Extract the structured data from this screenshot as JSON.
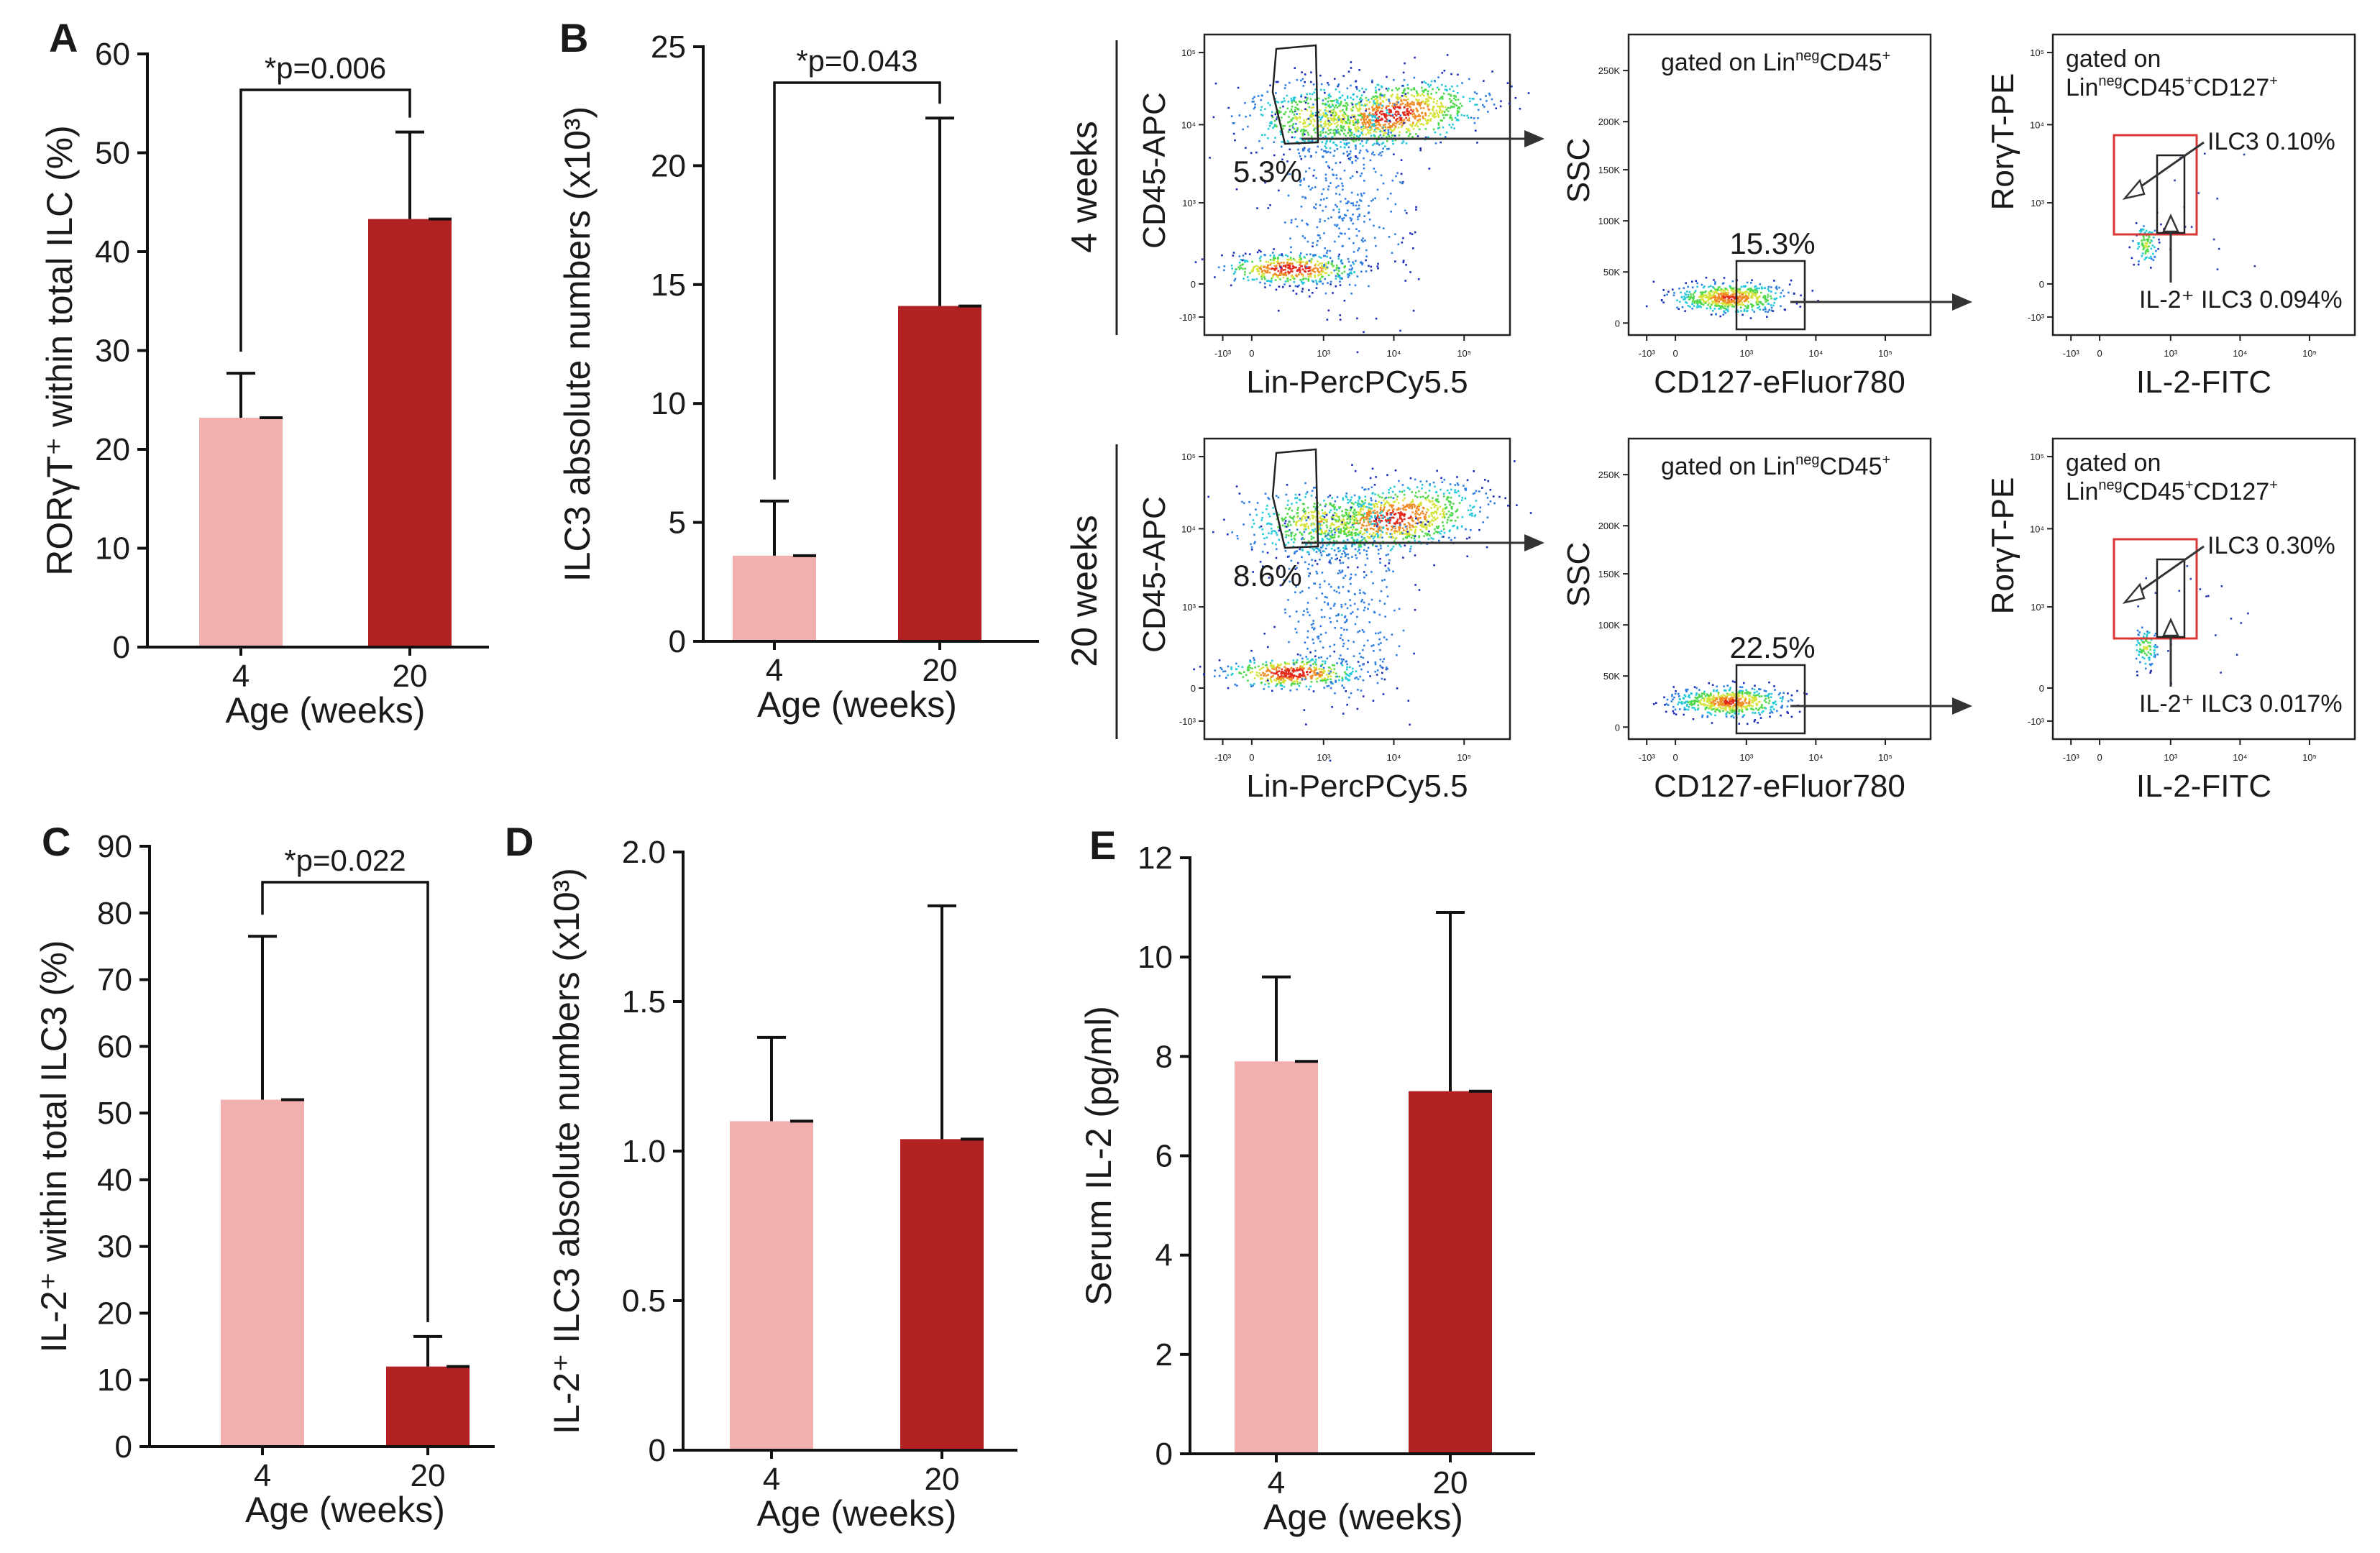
{
  "colors": {
    "young": "#f2afaf",
    "old": "#b22222",
    "gate_red": "#d93636"
  },
  "chart_data": [
    {
      "id": "A",
      "type": "bar",
      "panel_label": "A",
      "categories": [
        "4",
        "20"
      ],
      "values": [
        23.2,
        43.3
      ],
      "errors": [
        4.5,
        8.8
      ],
      "ylabel": "RORγT⁺ within total ILC (%)",
      "xlabel": "Age (weeks)",
      "ylim": [
        0,
        60
      ],
      "yticks": [
        "0",
        "10",
        "20",
        "30",
        "40",
        "50",
        "60"
      ],
      "significance": "*p=0.006"
    },
    {
      "id": "B",
      "type": "bar",
      "panel_label": "B",
      "categories": [
        "4",
        "20"
      ],
      "values": [
        3.6,
        14.1
      ],
      "errors": [
        2.3,
        7.9
      ],
      "ylabel": "ILC3 absolute numbers (x10³)",
      "xlabel": "Age (weeks)",
      "ylim": [
        0,
        25
      ],
      "yticks": [
        "0",
        "5",
        "10",
        "15",
        "20",
        "25"
      ],
      "significance": "*p=0.043"
    },
    {
      "id": "C",
      "type": "bar",
      "panel_label": "C",
      "categories": [
        "4",
        "20"
      ],
      "values": [
        52,
        12
      ],
      "errors": [
        24.5,
        4.5
      ],
      "ylabel": "IL-2⁺ within total ILC3 (%)",
      "xlabel": "Age (weeks)",
      "ylim": [
        0,
        90
      ],
      "yticks": [
        "0",
        "10",
        "20",
        "30",
        "40",
        "50",
        "60",
        "70",
        "80",
        "90"
      ],
      "significance": "*p=0.022"
    },
    {
      "id": "D",
      "type": "bar",
      "panel_label": "D",
      "categories": [
        "4",
        "20"
      ],
      "values": [
        1.1,
        1.04
      ],
      "errors": [
        0.28,
        0.78
      ],
      "ylabel": "IL-2⁺ ILC3 absolute numbers (x10³)",
      "xlabel": "Age (weeks)",
      "ylim": [
        0,
        2.0
      ],
      "yticks": [
        "0",
        "0.5",
        "1.0",
        "1.5",
        "2.0"
      ],
      "significance": ""
    },
    {
      "id": "E",
      "type": "bar",
      "panel_label": "E",
      "categories": [
        "4",
        "20"
      ],
      "values": [
        7.9,
        7.3
      ],
      "errors": [
        1.7,
        3.6
      ],
      "ylabel": "Serum IL-2 (pg/ml)",
      "xlabel": "Age (weeks)",
      "ylim": [
        0,
        12
      ],
      "yticks": [
        "0",
        "2",
        "4",
        "6",
        "8",
        "10",
        "12"
      ],
      "significance": ""
    }
  ],
  "flow": {
    "rows": [
      {
        "week_label": "4 weeks",
        "p1": {
          "xlabel": "Lin-PercPCy5.5",
          "ylabel": "CD45-APC",
          "gate_pct": "5.3%"
        },
        "p2": {
          "xlabel": "CD127-eFluor780",
          "ylabel": "SSC",
          "gate_text": "gated on Lin^negCD45^+",
          "gate_pct": "15.3%"
        },
        "p3": {
          "xlabel": "IL-2-FITC",
          "ylabel": "RorγT-PE",
          "gate_line1": "gated on",
          "gate_line2": "Lin^negCD45^+CD127^+",
          "ilc3": "ILC3 0.10%",
          "il2": "IL-2⁺ ILC3 0.094%"
        }
      },
      {
        "week_label": "20 weeks",
        "p1": {
          "xlabel": "Lin-PercPCy5.5",
          "ylabel": "CD45-APC",
          "gate_pct": "8.6%"
        },
        "p2": {
          "xlabel": "CD127-eFluor780",
          "ylabel": "SSC",
          "gate_text": "gated on Lin^negCD45^+",
          "gate_pct": "22.5%"
        },
        "p3": {
          "xlabel": "IL-2-FITC",
          "ylabel": "RorγT-PE",
          "gate_line1": "gated on",
          "gate_line2": "Lin^negCD45^+CD127^+",
          "ilc3": "ILC3 0.30%",
          "il2": "IL-2⁺ ILC3 0.017%"
        }
      }
    ],
    "log_ticks": [
      "-10³",
      "0",
      "10³",
      "10⁴",
      "10⁵"
    ],
    "ssc_ticks": [
      "0",
      "50K",
      "100K",
      "150K",
      "200K",
      "250K"
    ]
  }
}
